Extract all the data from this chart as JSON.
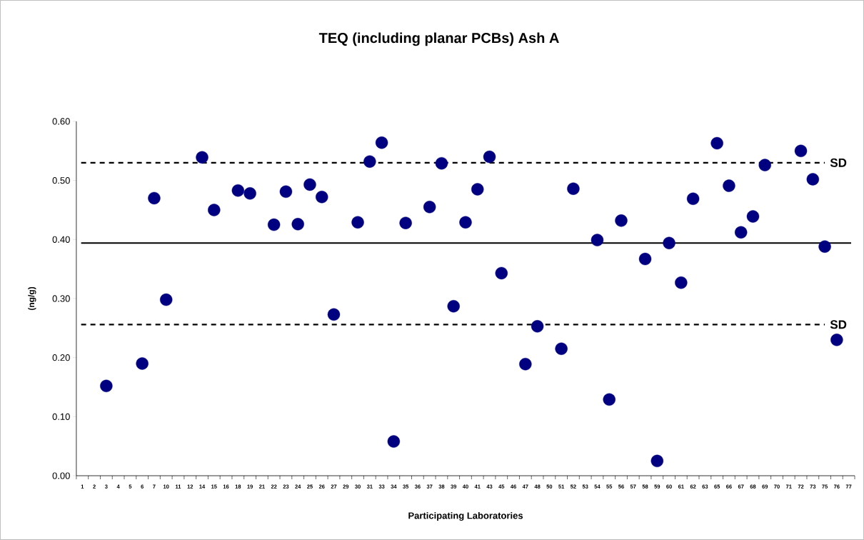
{
  "chart_data": {
    "type": "scatter",
    "title": "TEQ (including planar PCBs) Ash A",
    "xlabel": "Participating Laboratories",
    "ylabel": "(ng/g)",
    "categories": [
      "1",
      "2",
      "3",
      "4",
      "5",
      "6",
      "7",
      "10",
      "11",
      "12",
      "14",
      "15",
      "16",
      "18",
      "19",
      "21",
      "22",
      "23",
      "24",
      "25",
      "26",
      "27",
      "29",
      "30",
      "31",
      "33",
      "34",
      "35",
      "36",
      "37",
      "38",
      "39",
      "40",
      "41",
      "43",
      "45",
      "46",
      "47",
      "48",
      "50",
      "51",
      "52",
      "53",
      "54",
      "55",
      "56",
      "57",
      "58",
      "59",
      "60",
      "61",
      "62",
      "63",
      "65",
      "66",
      "67",
      "68",
      "69",
      "70",
      "71",
      "72",
      "73",
      "75",
      "76",
      "77"
    ],
    "series": [
      {
        "color": "#000080",
        "values": [
          null,
          null,
          0.152,
          null,
          null,
          0.19,
          0.47,
          0.298,
          null,
          null,
          0.539,
          0.45,
          null,
          0.483,
          0.478,
          null,
          0.425,
          0.481,
          0.426,
          0.493,
          0.472,
          0.273,
          null,
          0.429,
          0.532,
          0.564,
          0.058,
          0.428,
          null,
          0.455,
          0.529,
          0.287,
          0.429,
          0.485,
          0.54,
          0.343,
          null,
          0.189,
          0.253,
          null,
          0.215,
          0.486,
          null,
          0.399,
          0.129,
          0.432,
          null,
          0.367,
          0.025,
          0.394,
          0.327,
          0.469,
          null,
          0.563,
          0.491,
          0.412,
          0.439,
          0.526,
          null,
          null,
          0.55,
          0.502,
          0.388,
          0.23,
          null
        ]
      }
    ],
    "marker": "circle",
    "ylim": [
      0,
      0.6
    ],
    "yticks": [
      {
        "value": 0,
        "label": "0.00"
      },
      {
        "value": 0.1,
        "label": "0.10"
      },
      {
        "value": 0.2,
        "label": "0.20"
      },
      {
        "value": 0.3,
        "label": "0.30"
      },
      {
        "value": 0.4,
        "label": "0.40"
      },
      {
        "value": 0.5,
        "label": "0.50"
      },
      {
        "value": 0.6,
        "label": "0.60"
      }
    ],
    "ref_lines": [
      {
        "axis": "y",
        "value": 0.394,
        "color": "#000000",
        "line_style": "solid"
      },
      {
        "axis": "y",
        "value": 0.53,
        "label": "SD",
        "color": "#000000",
        "line_style": "dashed"
      },
      {
        "axis": "y",
        "value": 0.256,
        "label": "SD",
        "color": "#000000",
        "line_style": "dashed"
      }
    ]
  }
}
